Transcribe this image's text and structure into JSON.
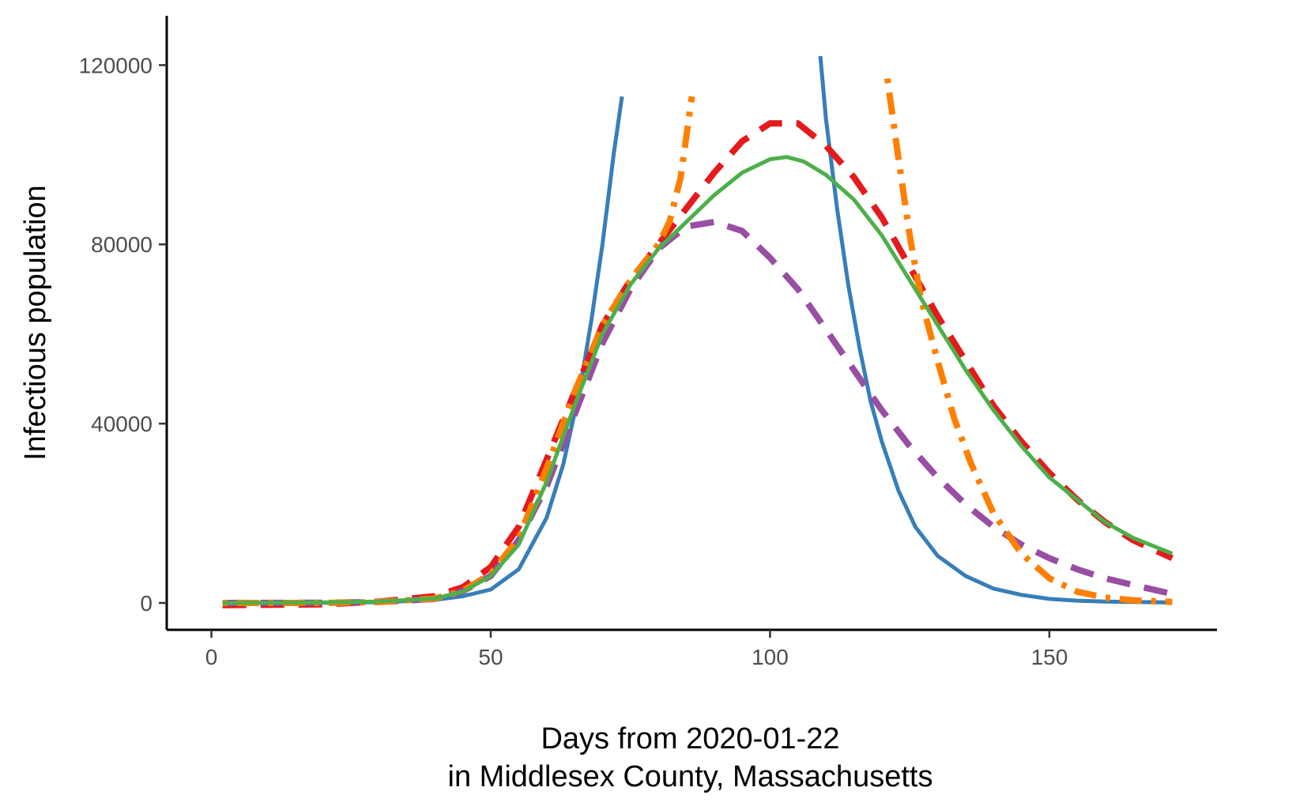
{
  "chart_data": {
    "type": "line",
    "title": "",
    "xlabel_lines": [
      "Days from 2020-01-22",
      "in Middlesex County, Massachusetts"
    ],
    "ylabel": "Infectious population",
    "xlim": [
      -8,
      180
    ],
    "ylim": [
      -6000,
      131000
    ],
    "xticks": [
      0,
      50,
      100,
      150
    ],
    "yticks": [
      0,
      40000,
      80000,
      120000
    ],
    "xtick_labels": [
      "0",
      "50",
      "100",
      "150"
    ],
    "ytick_labels": [
      "0",
      "40000",
      "80000",
      "120000"
    ],
    "grid": false,
    "legend": "none",
    "series": [
      {
        "color": "#377eb8",
        "style": "solid",
        "x": [
          2,
          20,
          30,
          40,
          45,
          50,
          55,
          60,
          63,
          66,
          68,
          70,
          72,
          73.5
        ],
        "y": [
          0,
          50,
          150,
          700,
          1500,
          3000,
          7500,
          19000,
          31000,
          48000,
          63000,
          80000,
          100000,
          113000
        ]
      },
      {
        "color": "#377eb8",
        "style": "solid",
        "x": [
          109,
          110,
          112,
          114,
          116,
          118,
          120,
          123,
          126,
          130,
          135,
          140,
          145,
          150,
          155,
          160,
          165,
          172
        ],
        "y": [
          122000,
          108000,
          88000,
          71000,
          57000,
          45000,
          36000,
          25000,
          17000,
          10500,
          6000,
          3200,
          1800,
          900,
          500,
          300,
          200,
          100
        ]
      },
      {
        "color": "#e41a1c",
        "style": "dashed",
        "x": [
          2,
          20,
          30,
          40,
          45,
          50,
          55,
          60,
          65,
          70,
          75,
          80,
          85,
          90,
          95,
          100,
          105,
          110,
          115,
          120,
          125,
          130,
          135,
          140,
          145,
          150,
          155,
          160,
          165,
          172
        ],
        "y": [
          -500,
          -300,
          300,
          1500,
          3500,
          8000,
          17000,
          32000,
          47000,
          62000,
          72000,
          80000,
          88000,
          96000,
          103000,
          107000,
          107000,
          102000,
          95000,
          86000,
          75000,
          64000,
          54000,
          44000,
          36000,
          29000,
          23000,
          18000,
          14000,
          10000
        ]
      },
      {
        "color": "#984ea3",
        "style": "dashed",
        "x": [
          2,
          20,
          30,
          40,
          45,
          50,
          55,
          60,
          65,
          70,
          75,
          80,
          85,
          90,
          95,
          100,
          105,
          110,
          115,
          120,
          125,
          130,
          135,
          140,
          145,
          150,
          155,
          160,
          165,
          172
        ],
        "y": [
          0,
          50,
          200,
          900,
          2600,
          6000,
          14000,
          26000,
          42000,
          58000,
          70000,
          79000,
          84000,
          85000,
          83000,
          77000,
          70000,
          61000,
          52000,
          43000,
          35000,
          28000,
          22000,
          17000,
          13000,
          10000,
          7500,
          5500,
          4000,
          2000
        ]
      },
      {
        "color": "#ff7f00",
        "style": "dotdash",
        "x": [
          2,
          20,
          30,
          40,
          45,
          50,
          55,
          60,
          65,
          70,
          75,
          80,
          82,
          84,
          86
        ],
        "y": [
          0,
          0,
          200,
          1000,
          2700,
          6500,
          14500,
          30000,
          47000,
          62000,
          72000,
          80000,
          85000,
          95000,
          113000
        ]
      },
      {
        "color": "#ff7f00",
        "style": "dotdash",
        "x": [
          121,
          123,
          125,
          127,
          130,
          133,
          136,
          140,
          145,
          150,
          155,
          160,
          165,
          172
        ],
        "y": [
          117000,
          99000,
          82000,
          68000,
          54000,
          41000,
          31000,
          20000,
          11000,
          5500,
          2500,
          1200,
          600,
          200
        ]
      },
      {
        "color": "#4daf4a",
        "style": "solid",
        "x": [
          2,
          20,
          30,
          40,
          45,
          50,
          55,
          60,
          65,
          70,
          75,
          80,
          85,
          90,
          95,
          100,
          103,
          106,
          110,
          115,
          120,
          125,
          130,
          135,
          140,
          145,
          150,
          155,
          160,
          165,
          172
        ],
        "y": [
          0,
          100,
          300,
          1000,
          2500,
          6000,
          13000,
          27000,
          44000,
          60000,
          71000,
          79000,
          85000,
          91000,
          96000,
          99000,
          99500,
          98500,
          95500,
          90000,
          82000,
          72000,
          62000,
          52000,
          43000,
          35000,
          28000,
          23000,
          18000,
          14500,
          11000
        ]
      }
    ]
  }
}
